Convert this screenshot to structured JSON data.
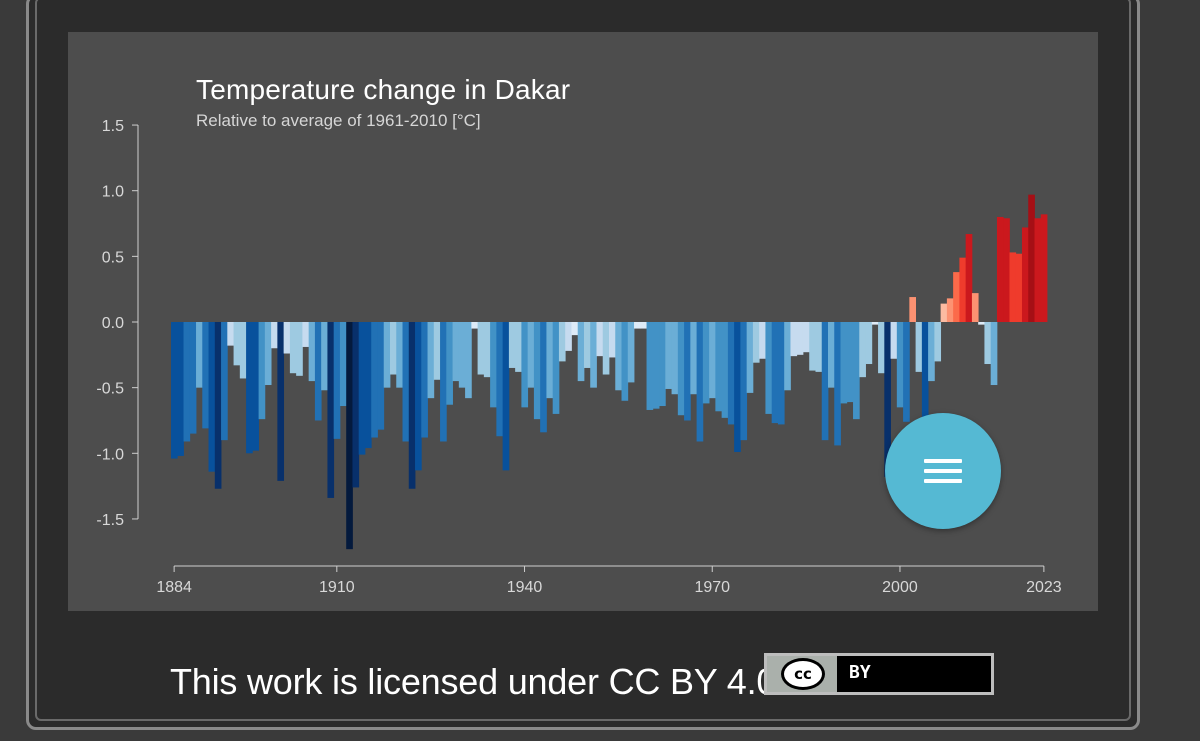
{
  "chart_data": {
    "type": "bar",
    "title": "Temperature change in Dakar",
    "subtitle": "Relative to average of 1961-2010  [°C]",
    "xlabel": "",
    "ylabel": "",
    "x_start": 1884,
    "x_end": 2023,
    "xticks": [
      1884,
      1910,
      1940,
      1970,
      2000,
      2023
    ],
    "ylim": [
      -1.5,
      1.5
    ],
    "yticks": [
      1.5,
      1.0,
      0.5,
      0.0,
      -0.5,
      -1.0,
      -1.5
    ],
    "ytick_labels": [
      "1.5",
      "1.0",
      "0.5",
      "0.0",
      "-0.5",
      "-1.0",
      "-1.5"
    ],
    "grid": false,
    "values": [
      -1.04,
      -1.02,
      -0.91,
      -0.85,
      -0.5,
      -0.81,
      -1.14,
      -1.27,
      -0.9,
      -0.18,
      -0.33,
      -0.43,
      -1.0,
      -0.98,
      -0.74,
      -0.48,
      -0.2,
      -1.21,
      -0.24,
      -0.39,
      -0.41,
      -0.19,
      -0.45,
      -0.75,
      -0.52,
      -1.34,
      -0.89,
      -0.64,
      -1.73,
      -1.26,
      -1.01,
      -0.96,
      -0.88,
      -0.82,
      -0.5,
      -0.4,
      -0.5,
      -0.91,
      -1.27,
      -1.13,
      -0.88,
      -0.58,
      -0.44,
      -0.91,
      -0.63,
      -0.45,
      -0.5,
      -0.58,
      -0.05,
      -0.4,
      -0.42,
      -0.65,
      -0.87,
      -1.13,
      -0.35,
      -0.38,
      -0.65,
      -0.5,
      -0.74,
      -0.84,
      -0.58,
      -0.7,
      -0.3,
      -0.22,
      -0.1,
      -0.45,
      -0.35,
      -0.5,
      -0.26,
      -0.4,
      -0.27,
      -0.52,
      -0.6,
      -0.46,
      -0.05,
      -0.05,
      -0.67,
      -0.66,
      -0.64,
      -0.51,
      -0.55,
      -0.71,
      -0.75,
      -0.55,
      -0.91,
      -0.62,
      -0.58,
      -0.68,
      -0.73,
      -0.78,
      -0.99,
      -0.9,
      -0.54,
      -0.31,
      -0.28,
      -0.7,
      -0.77,
      -0.78,
      -0.52,
      -0.26,
      -0.25,
      -0.23,
      -0.37,
      -0.38,
      -0.9,
      -0.5,
      -0.94,
      -0.62,
      -0.61,
      -0.74,
      -0.42,
      -0.32,
      -0.02,
      -0.39,
      -1.18,
      -0.28,
      -0.65,
      -0.76,
      0.19,
      -0.38,
      -0.95,
      -0.45,
      -0.3,
      0.14,
      0.18,
      0.38,
      0.49,
      0.67,
      0.22,
      -0.02,
      -0.32,
      -0.48,
      0.8,
      0.79,
      0.53,
      0.52,
      0.72,
      0.97,
      0.79,
      0.82
    ]
  },
  "menu": {
    "button_icon": "hamburger-menu-icon"
  },
  "footer": {
    "license_text": "This work is licensed under CC BY 4.0",
    "cc_label": "cc",
    "by_label": "BY"
  }
}
